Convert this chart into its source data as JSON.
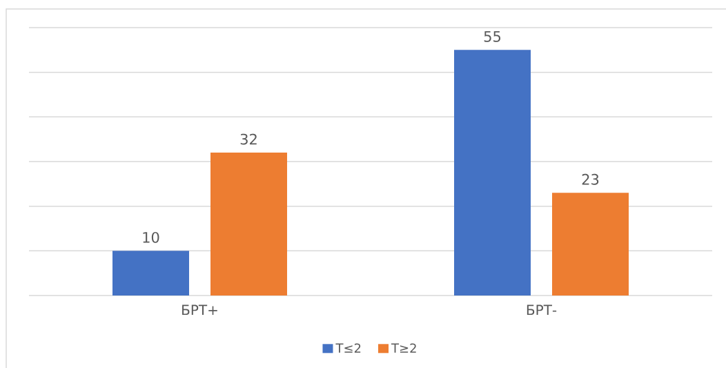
{
  "chart_data": {
    "type": "bar",
    "categories": [
      "БРТ+",
      "БРТ-"
    ],
    "series": [
      {
        "name": "T≤2",
        "color": "#4472c4",
        "values": [
          10,
          55
        ]
      },
      {
        "name": "T≥2",
        "color": "#ed7d31",
        "values": [
          32,
          23
        ]
      }
    ],
    "ylim": [
      0,
      60
    ],
    "yticks": [
      {
        "value": 0,
        "label": null
      },
      {
        "value": 10,
        "label": null
      },
      {
        "value": 20,
        "label": null
      },
      {
        "value": 30,
        "label": null
      },
      {
        "value": 40,
        "label": null
      },
      {
        "value": 50,
        "label": null
      },
      {
        "value": 60,
        "label": null
      }
    ],
    "grid": "y",
    "legend": "bottom",
    "tick_labels": "x",
    "data_labels": true
  }
}
